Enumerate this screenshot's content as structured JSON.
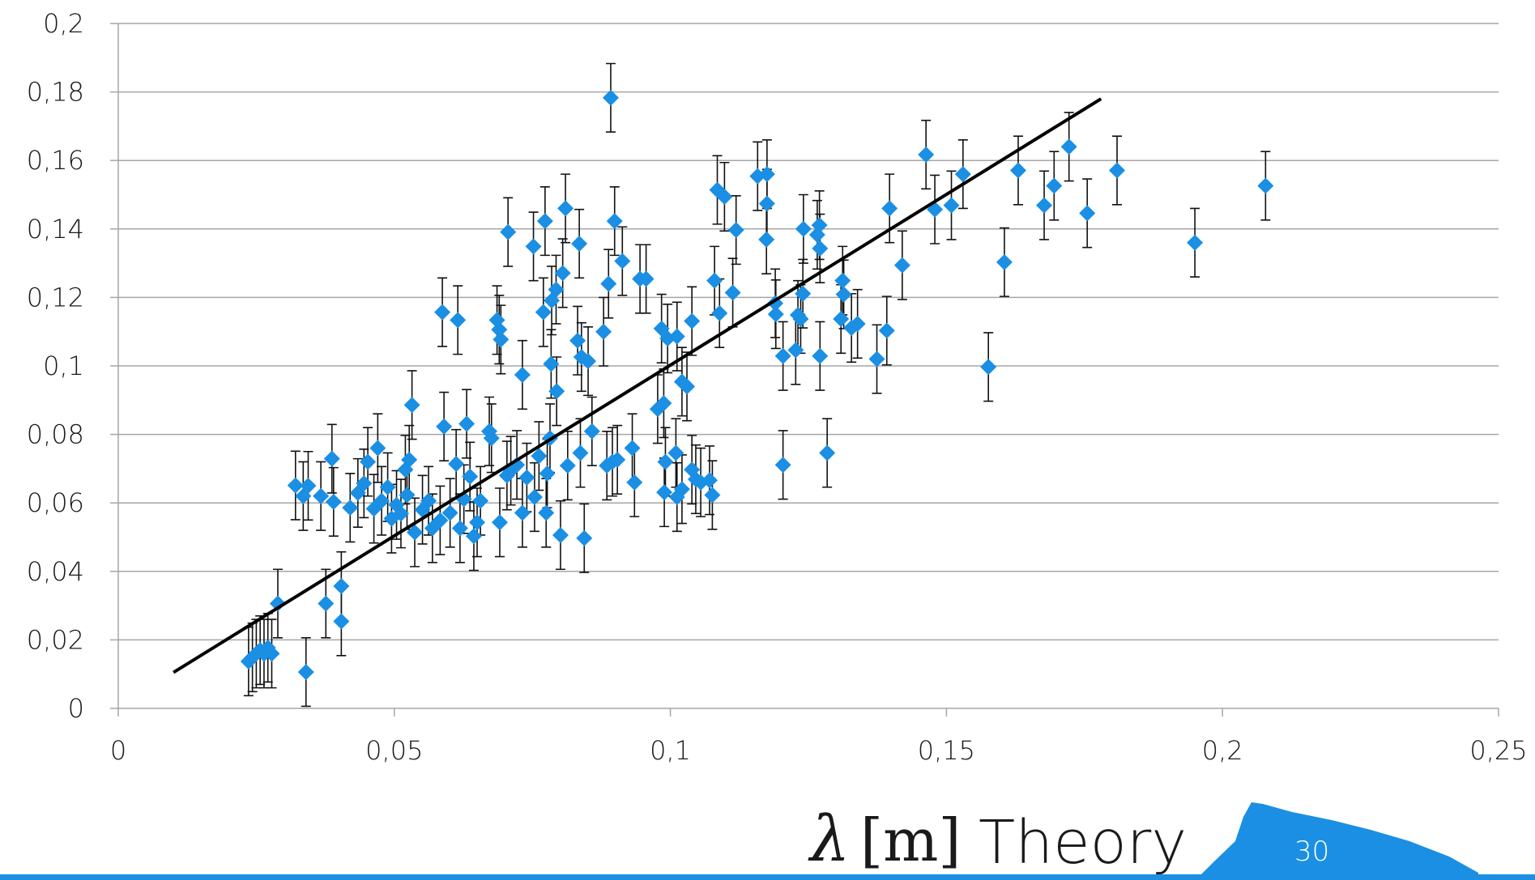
{
  "chart_data": {
    "type": "scatter",
    "xlabel_symbol": "λ",
    "xlabel_unit": "[m]",
    "xlabel_text": "Theory",
    "page_number": "30",
    "xlim": [
      0,
      0.25
    ],
    "ylim": [
      0,
      0.2
    ],
    "xticks": [
      0,
      {
        "value": 0.05,
        "label": "0,05"
      },
      {
        "value": 0.1,
        "label": "0,1"
      },
      {
        "value": 0.15,
        "label": "0,15"
      },
      {
        "value": 0.2,
        "label": "0,2"
      },
      {
        "value": 0.25,
        "label": "0,25"
      }
    ],
    "yticks": [
      0,
      {
        "value": 0.02,
        "label": "0,02"
      },
      {
        "value": 0.04,
        "label": "0,04"
      },
      {
        "value": 0.06,
        "label": "0,06"
      },
      {
        "value": 0.08,
        "label": "0,08"
      },
      {
        "value": 0.1,
        "label": "0,1"
      },
      {
        "value": 0.12,
        "label": "0,12"
      },
      {
        "value": 0.14,
        "label": "0,14"
      },
      {
        "value": 0.16,
        "label": "0,16"
      },
      {
        "value": 0.18,
        "label": "0,18"
      },
      {
        "value": 0.2,
        "label": "0,2"
      }
    ],
    "grid": true,
    "series": [
      {
        "color": "#1a8fe3",
        "error": 0.01,
        "x": [
          0.0236,
          0.0243,
          0.025,
          0.0257,
          0.0264,
          0.0271,
          0.0278,
          0.0289,
          0.034,
          0.0321,
          0.0335,
          0.0344,
          0.0367,
          0.0376,
          0.0387,
          0.039,
          0.0404,
          0.0404,
          0.042,
          0.0434,
          0.0445,
          0.0452,
          0.047,
          0.0463,
          0.0477,
          0.0488,
          0.0495,
          0.0504,
          0.0512,
          0.052,
          0.0527,
          0.0532,
          0.0523,
          0.0537,
          0.0551,
          0.0562,
          0.0569,
          0.0583,
          0.059,
          0.0587,
          0.0612,
          0.0615,
          0.0601,
          0.0619,
          0.0626,
          0.0631,
          0.0637,
          0.0644,
          0.065,
          0.0656,
          0.0672,
          0.0676,
          0.0686,
          0.069,
          0.0693,
          0.0691,
          0.0706,
          0.0704,
          0.0711,
          0.0722,
          0.0732,
          0.074,
          0.0732,
          0.0752,
          0.0754,
          0.0762,
          0.077,
          0.0773,
          0.0775,
          0.0777,
          0.0782,
          0.0784,
          0.0785,
          0.0793,
          0.0794,
          0.0801,
          0.0805,
          0.081,
          0.0814,
          0.0832,
          0.0835,
          0.0837,
          0.0839,
          0.0844,
          0.0851,
          0.0858,
          0.0879,
          0.0885,
          0.0888,
          0.0892,
          0.0895,
          0.0899,
          0.0904,
          0.0913,
          0.0931,
          0.0935,
          0.0945,
          0.0956,
          0.0977,
          0.0984,
          0.0988,
          0.0991,
          0.0989,
          0.0995,
          0.1012,
          0.101,
          0.1012,
          0.1021,
          0.1021,
          0.103,
          0.1039,
          0.1039,
          0.1046,
          0.1055,
          0.1071,
          0.1076,
          0.108,
          0.1085,
          0.1089,
          0.1098,
          0.1113,
          0.1119,
          0.1158,
          0.1175,
          0.1175,
          0.1174,
          0.119,
          0.1191,
          0.1204,
          0.1204,
          0.1227,
          0.1231,
          0.1236,
          0.124,
          0.1241,
          0.1266,
          0.127,
          0.1271,
          0.1271,
          0.1284,
          0.1309,
          0.1312,
          0.1314,
          0.1328,
          0.1339,
          0.1374,
          0.1392,
          0.1397,
          0.142,
          0.1463,
          0.1479,
          0.1509,
          0.153,
          0.1576,
          0.1605,
          0.163,
          0.1677,
          0.1695,
          0.1722,
          0.1755,
          0.1809,
          0.195,
          0.2078
        ],
        "values": [
          0.0137,
          0.0149,
          0.016,
          0.017,
          0.016,
          0.0177,
          0.016,
          0.0306,
          0.0106,
          0.0651,
          0.062,
          0.065,
          0.062,
          0.0306,
          0.0729,
          0.0603,
          0.0357,
          0.0254,
          0.0586,
          0.0629,
          0.0657,
          0.072,
          0.076,
          0.0583,
          0.0606,
          0.0646,
          0.0554,
          0.0594,
          0.0569,
          0.0697,
          0.0726,
          0.0886,
          0.0623,
          0.0514,
          0.058,
          0.0606,
          0.0526,
          0.0549,
          0.0823,
          0.1157,
          0.0714,
          0.1134,
          0.0571,
          0.0526,
          0.0611,
          0.0831,
          0.0677,
          0.0503,
          0.0543,
          0.0606,
          0.0809,
          0.0789,
          0.1134,
          0.1106,
          0.1077,
          0.0543,
          0.1391,
          0.068,
          0.0694,
          0.0711,
          0.0974,
          0.0674,
          0.0571,
          0.1349,
          0.0617,
          0.0737,
          0.1157,
          0.1423,
          0.0571,
          0.0686,
          0.0789,
          0.1006,
          0.1191,
          0.1223,
          0.0926,
          0.0506,
          0.1271,
          0.146,
          0.0709,
          0.1074,
          0.1357,
          0.0746,
          0.1026,
          0.0497,
          0.1014,
          0.0809,
          0.11,
          0.0709,
          0.124,
          0.1783,
          0.072,
          0.1423,
          0.0726,
          0.1306,
          0.076,
          0.066,
          0.1254,
          0.1254,
          0.0874,
          0.1109,
          0.0891,
          0.072,
          0.0631,
          0.108,
          0.1086,
          0.0746,
          0.0617,
          0.064,
          0.0954,
          0.094,
          0.1131,
          0.0697,
          0.0669,
          0.066,
          0.0666,
          0.0623,
          0.1249,
          0.1514,
          0.1154,
          0.1494,
          0.1214,
          0.1397,
          0.1554,
          0.156,
          0.1474,
          0.1369,
          0.1183,
          0.1151,
          0.0711,
          0.1029,
          0.1046,
          0.1149,
          0.1137,
          0.1211,
          0.14,
          0.1383,
          0.1411,
          0.1343,
          0.1029,
          0.0746,
          0.1137,
          0.1249,
          0.1209,
          0.1111,
          0.1123,
          0.102,
          0.1103,
          0.146,
          0.1294,
          0.1617,
          0.1457,
          0.1469,
          0.156,
          0.0997,
          0.1303,
          0.1571,
          0.1469,
          0.1526,
          0.164,
          0.1446,
          0.1571,
          0.136,
          0.1526
        ]
      }
    ],
    "trendline": {
      "color": "#000000",
      "x": [
        0.01,
        0.178
      ],
      "values": [
        0.0105,
        0.178
      ]
    }
  }
}
